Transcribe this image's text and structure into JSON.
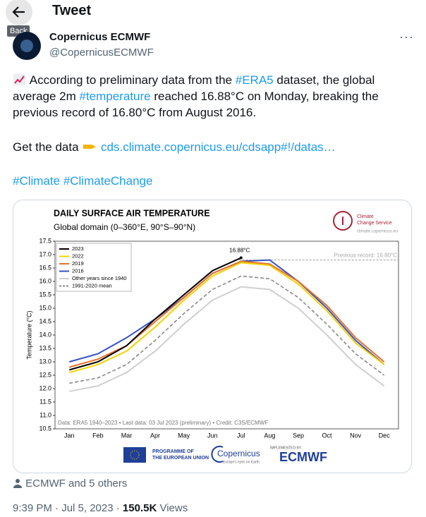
{
  "header": {
    "back_tooltip": "Back",
    "title": "Tweet"
  },
  "author": {
    "name": "Copernicus ECMWF",
    "handle": "@CopernicusECMWF"
  },
  "tweet": {
    "text": [
      "According to preliminary data from the ",
      "#ERA5",
      " dataset, the global average 2m ",
      "#temperature",
      " reached 16.88°C on Monday, breaking the previous record of 16.80°C from August 2016."
    ],
    "get_data": "Get the data",
    "link": "cds.climate.copernicus.eu/cdsapp#!/datas…",
    "hashtags": [
      "#Climate",
      "#ClimateChange"
    ]
  },
  "chart_data": {
    "type": "line",
    "title": "DAILY SURFACE AIR TEMPERATURE",
    "subtitle": "Global domain (0–360°E, 90°S–90°N)",
    "y_label": "Temperature (°C)",
    "categories": [
      "Jan",
      "Feb",
      "Mar",
      "Apr",
      "May",
      "Jun",
      "Jul",
      "Aug",
      "Sep",
      "Oct",
      "Nov",
      "Dec"
    ],
    "series": [
      {
        "name": "Other years since 1940",
        "color": "#cfcfcf",
        "values": [
          11.9,
          12.1,
          12.6,
          13.4,
          14.4,
          15.3,
          15.8,
          15.7,
          15.0,
          14.0,
          12.9,
          12.1
        ]
      },
      {
        "name": "1991-2020 mean",
        "color": "#888888",
        "dashed": true,
        "values": [
          12.2,
          12.4,
          12.9,
          13.8,
          14.8,
          15.7,
          16.2,
          16.1,
          15.4,
          14.4,
          13.3,
          12.5
        ]
      },
      {
        "name": "2016",
        "color": "#3552c2",
        "values": [
          13.0,
          13.3,
          13.9,
          14.6,
          15.4,
          16.3,
          16.75,
          16.8,
          16.0,
          15.0,
          13.8,
          12.9
        ]
      },
      {
        "name": "2019",
        "color": "#e8702a",
        "values": [
          12.8,
          13.1,
          13.6,
          14.5,
          15.4,
          16.3,
          16.75,
          16.65,
          16.0,
          15.1,
          13.9,
          13.0
        ]
      },
      {
        "name": "2022",
        "color": "#f2d200",
        "values": [
          12.6,
          12.9,
          13.4,
          14.3,
          15.3,
          16.2,
          16.7,
          16.6,
          15.9,
          14.9,
          13.7,
          12.9
        ]
      },
      {
        "name": "2023",
        "color": "#000000",
        "values": [
          12.7,
          13.0,
          13.6,
          14.6,
          15.5,
          16.4,
          16.88,
          null,
          null,
          null,
          null,
          null
        ]
      }
    ],
    "legend_order": [
      5,
      4,
      3,
      2,
      0,
      1
    ],
    "ylim": [
      10.5,
      17.5
    ],
    "yticks": [
      10.5,
      {
        "value": 11,
        "label": "11.0"
      },
      11.5,
      {
        "value": 12,
        "label": "12.0"
      },
      12.5,
      {
        "value": 13,
        "label": "13.0"
      },
      13.5,
      {
        "value": 14,
        "label": "14.0"
      },
      14.5,
      {
        "value": 15,
        "label": "15.0"
      },
      15.5,
      {
        "value": 16,
        "label": "16.0"
      },
      16.5,
      {
        "value": 17,
        "label": "17.0"
      },
      17.5
    ],
    "grid": false,
    "peak_label": {
      "label": "16.88°C",
      "value": 16.88
    },
    "record": {
      "label": "Previous record: 16.80°C",
      "value": 16.8
    },
    "note": "Data: ERA5 1940–2023 • Last data: 03 Jul 2023 (preliminary) • Credit: C3S/ECMWF",
    "logo_lines": [
      "Climate",
      "Change Service"
    ],
    "logo_url": "climate.copernicus.eu",
    "eu_lines": [
      "PROGRAMME OF",
      "THE EUROPEAN UNION"
    ],
    "copernicus": "Copernicus",
    "copernicus_tag": "Europe's eyes on Earth",
    "implemented_by": "IMPLEMENTED BY",
    "ecmwf": "ECMWF"
  },
  "footer": {
    "likes": "ECMWF and 5 others",
    "time": "9:39 PM · Jul 5, 2023 ·",
    "views": "150.5K",
    "views_label": "Views"
  }
}
